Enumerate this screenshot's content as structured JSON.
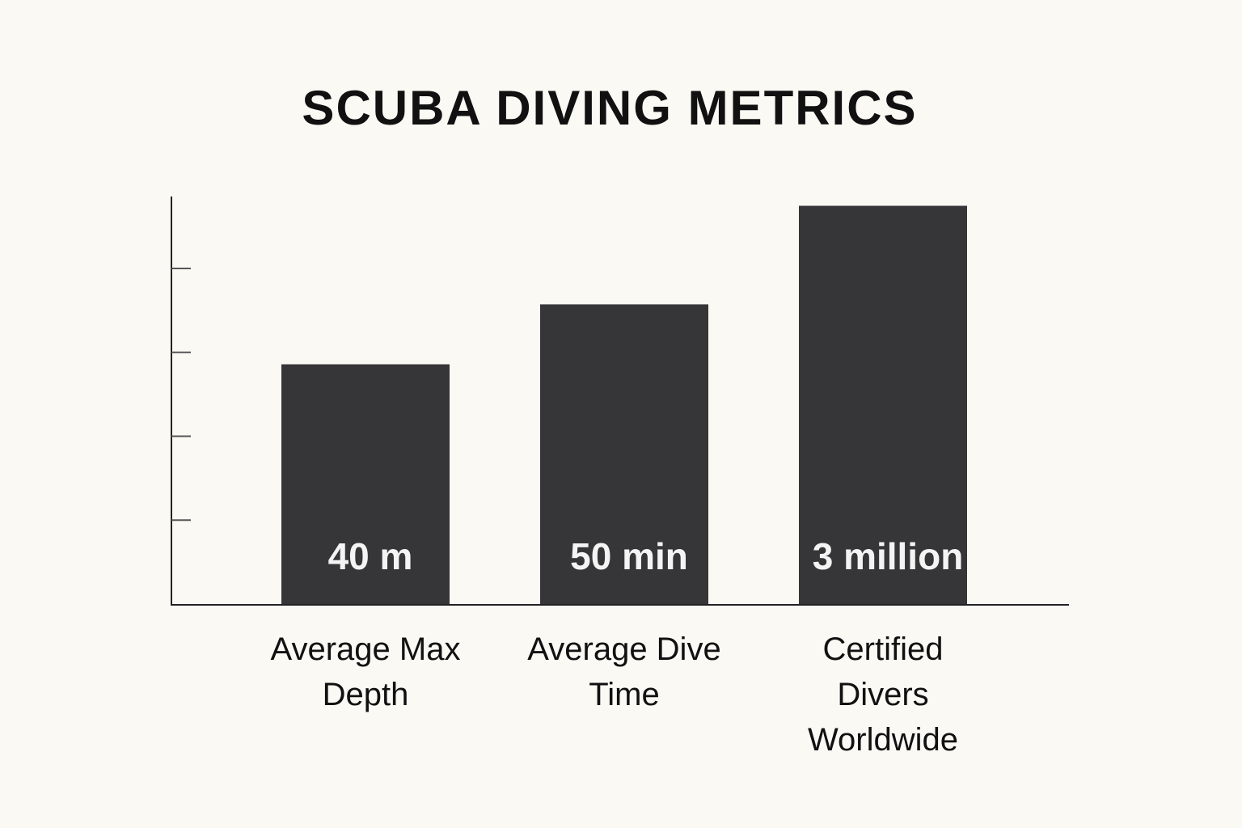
{
  "chart_data": {
    "type": "bar",
    "title": "SCUBA DIVING METRICS",
    "categories": [
      "Average Max Depth",
      "Average Dive Time",
      "Certified Divers Worldwide"
    ],
    "series": [
      {
        "color": "#363638",
        "values": [
          40,
          50,
          null
        ],
        "value_labels": [
          "40 m",
          "50 min",
          null
        ]
      },
      {
        "color": "#363638",
        "values": [
          null,
          null,
          3
        ],
        "value_labels": [
          null,
          null,
          "3 million"
        ],
        "axis": "y2"
      }
    ],
    "ylim": [
      0,
      68
    ],
    "yticks": [
      14,
      28,
      42,
      56
    ],
    "y2lim": [
      0,
      3.07
    ]
  }
}
